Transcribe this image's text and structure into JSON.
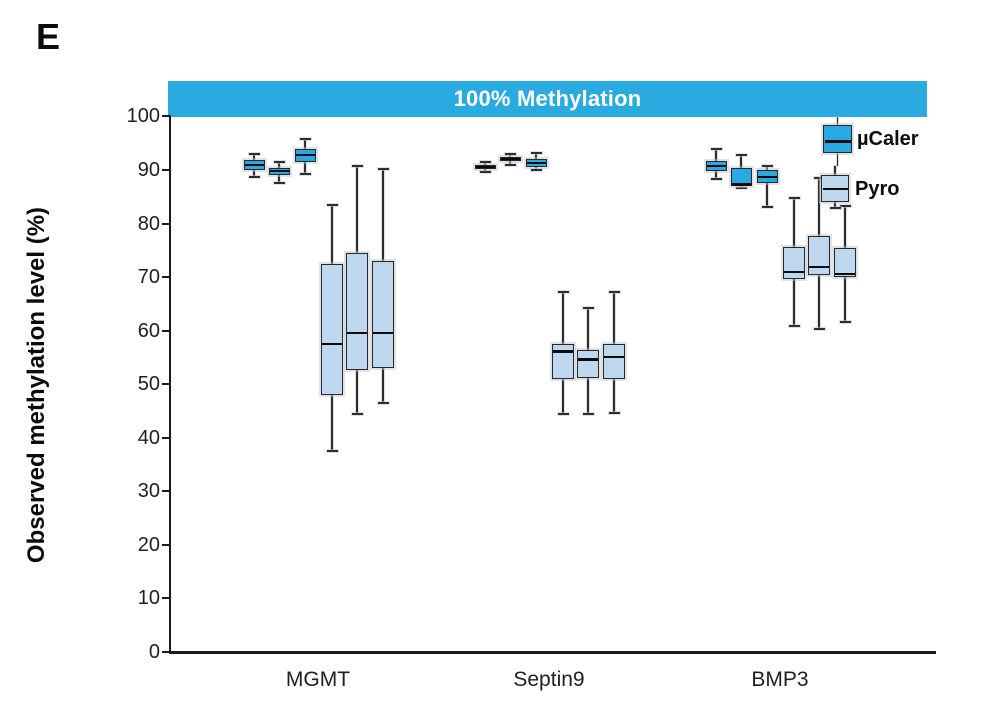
{
  "figure": {
    "panel_label": "E"
  },
  "chart_data": {
    "type": "boxplot",
    "title": "100% Methylation",
    "ylabel": "Observed methylation level (%)",
    "xlabel": "",
    "ylim": [
      0,
      106.5
    ],
    "yticks": [
      0,
      10,
      20,
      30,
      40,
      50,
      60,
      70,
      80,
      90,
      100
    ],
    "grid": false,
    "legend_position": "inside-top-right",
    "categories": [
      "MGMT",
      "Septin9",
      "BMP3"
    ],
    "box_format": [
      "whisker_low",
      "q1",
      "median",
      "q3",
      "whisker_high"
    ],
    "series": [
      {
        "name": "µCaler",
        "color": "#29a9e1",
        "boxes": [
          [
            [
              88.6,
              90.0,
              91.0,
              91.9,
              93.0
            ],
            [
              87.6,
              89.0,
              89.8,
              90.4,
              91.4
            ],
            [
              89.3,
              91.4,
              92.8,
              93.9,
              95.7
            ]
          ],
          [
            [
              89.7,
              90.2,
              90.5,
              91.0,
              91.5
            ],
            [
              91.0,
              91.6,
              92.0,
              92.4,
              93.0
            ],
            [
              89.9,
              90.5,
              91.3,
              92.1,
              93.2
            ]
          ],
          [
            [
              88.4,
              89.8,
              90.8,
              91.7,
              94.0
            ],
            [
              86.6,
              87.0,
              87.3,
              90.3,
              92.8
            ],
            [
              83.1,
              87.6,
              88.7,
              90.0,
              90.8
            ]
          ]
        ]
      },
      {
        "name": "Pyro",
        "color": "#bdd7ee",
        "boxes": [
          [
            [
              37.5,
              48.0,
              57.5,
              72.5,
              83.4
            ],
            [
              44.5,
              52.6,
              59.5,
              74.5,
              90.8
            ],
            [
              46.4,
              53.0,
              59.5,
              73.0,
              90.2
            ]
          ],
          [
            [
              44.4,
              50.9,
              56.1,
              57.5,
              67.3
            ],
            [
              44.5,
              51.1,
              54.6,
              56.4,
              64.2
            ],
            [
              44.6,
              50.9,
              55.1,
              57.5,
              67.2
            ]
          ],
          [
            [
              60.9,
              69.7,
              70.9,
              75.7,
              84.7
            ],
            [
              60.3,
              70.3,
              71.9,
              77.7,
              88.5
            ],
            [
              61.7,
              70.1,
              70.5,
              75.5,
              83.3
            ]
          ]
        ]
      }
    ],
    "colors": {
      "band": "#29abe2",
      "band_text": "#ffffff",
      "axis": "#1a1a1a",
      "median": "#0b0b0b",
      "box_border": "#24272b"
    }
  }
}
